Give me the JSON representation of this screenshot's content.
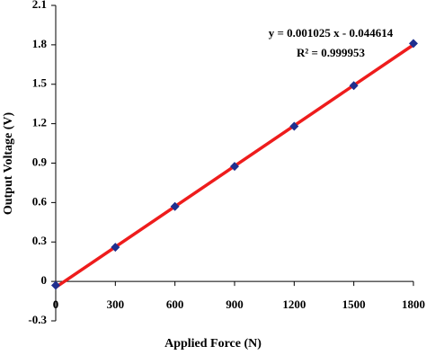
{
  "chart_data": {
    "type": "scatter",
    "x_label": "Applied Force (N)",
    "y_label": "Output Voltage (V)",
    "annotations": [
      "y = 0.001025 x - 0.044614",
      "R² = 0.999953"
    ],
    "x": [
      0,
      300,
      600,
      900,
      1200,
      1500,
      1800
    ],
    "values": [
      -0.03,
      0.26,
      0.57,
      0.875,
      1.18,
      1.49,
      1.81
    ],
    "color": "#1f2f8f",
    "fit_line": {
      "x": [
        0,
        1800
      ],
      "values": [
        -0.045,
        1.8
      ],
      "color": "#ee1c1c"
    },
    "xlim": [
      0,
      1800
    ],
    "xticks": [
      0,
      300,
      600,
      900,
      1200,
      1500,
      1800
    ],
    "ylim": [
      -0.3,
      2.1
    ],
    "yticks": [
      -0.3,
      0,
      0.3,
      0.6,
      0.9,
      1.2,
      1.5,
      1.8,
      2.1
    ],
    "grid": false
  }
}
